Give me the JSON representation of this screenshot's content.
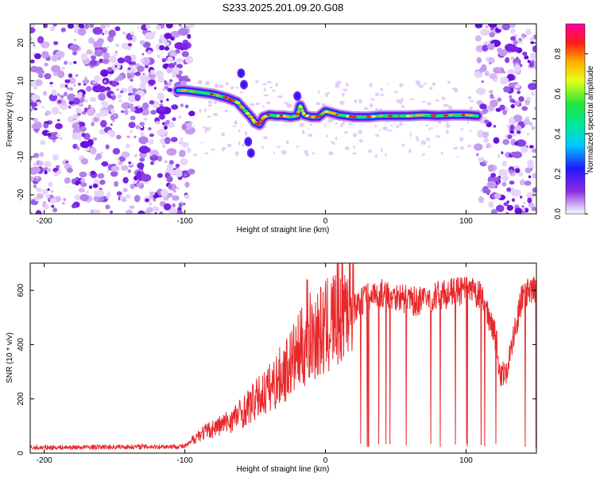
{
  "figure_title": "S233.2025.201.09.20.G08",
  "colors": {
    "snr_line": "#e8282a",
    "scatter_light": "#d7b8f5",
    "scatter_dark": "#7a22e6"
  },
  "chart_data": [
    {
      "type": "heatmap",
      "title": "S233.2025.201.09.20.G08",
      "xlabel": "Height of straight line (km)",
      "ylabel": "Frequency (Hz)",
      "xlim": [
        -210,
        150
      ],
      "ylim": [
        -25,
        25
      ],
      "x_ticks": [
        "-200",
        "-100",
        "0",
        "100"
      ],
      "y_ticks": [
        "20",
        "10",
        "0",
        "-10",
        "-20"
      ],
      "colorbar": {
        "label": "Normalized spectral amplitude",
        "range": [
          0,
          0.95
        ],
        "ticks": [
          "0.0",
          "0.2",
          "0.4",
          "0.6",
          "0.8"
        ]
      },
      "ridge": {
        "x": [
          -105,
          -100,
          -90,
          -80,
          -70,
          -63,
          -58,
          -53,
          -50,
          -47,
          -44,
          -40,
          -35,
          -30,
          -25,
          -20,
          -18,
          -15,
          -10,
          -5,
          0,
          5,
          10,
          20,
          30,
          40,
          50,
          60,
          70,
          80,
          90,
          100,
          108
        ],
        "y": [
          7.5,
          7.5,
          7.0,
          6.5,
          5.5,
          4.5,
          2.5,
          0.5,
          -1.0,
          -1.5,
          0.5,
          1.0,
          0.8,
          0.8,
          0.5,
          0.8,
          3.5,
          1.0,
          0.5,
          0.5,
          2.0,
          1.5,
          1.0,
          0.5,
          0.5,
          0.8,
          0.8,
          0.8,
          1.0,
          0.8,
          1.0,
          1.0,
          0.8
        ]
      },
      "noise_regions_x": [
        [
          -210,
          -95
        ],
        [
          108,
          150
        ]
      ]
    },
    {
      "type": "line",
      "xlabel": "Height of straight line (km)",
      "ylabel": "SNR (10 * v/v)",
      "xlim": [
        -210,
        150
      ],
      "ylim": [
        0,
        700
      ],
      "x_ticks": [
        "-200",
        "-100",
        "0",
        "100"
      ],
      "y_ticks": [
        "600",
        "400",
        "200",
        "0"
      ],
      "series": [
        {
          "x": [
            -210,
            -100,
            -90,
            -80,
            -70,
            -60,
            -50,
            -40,
            -30,
            -20,
            -10,
            0,
            10,
            20,
            30,
            40,
            50,
            60,
            70,
            80,
            90,
            100,
            110,
            120,
            125,
            130,
            140,
            150
          ],
          "y": [
            20,
            25,
            60,
            80,
            100,
            130,
            170,
            210,
            260,
            320,
            380,
            400,
            460,
            530,
            580,
            590,
            580,
            560,
            560,
            580,
            590,
            600,
            580,
            460,
            270,
            330,
            580,
            600
          ]
        }
      ]
    }
  ]
}
